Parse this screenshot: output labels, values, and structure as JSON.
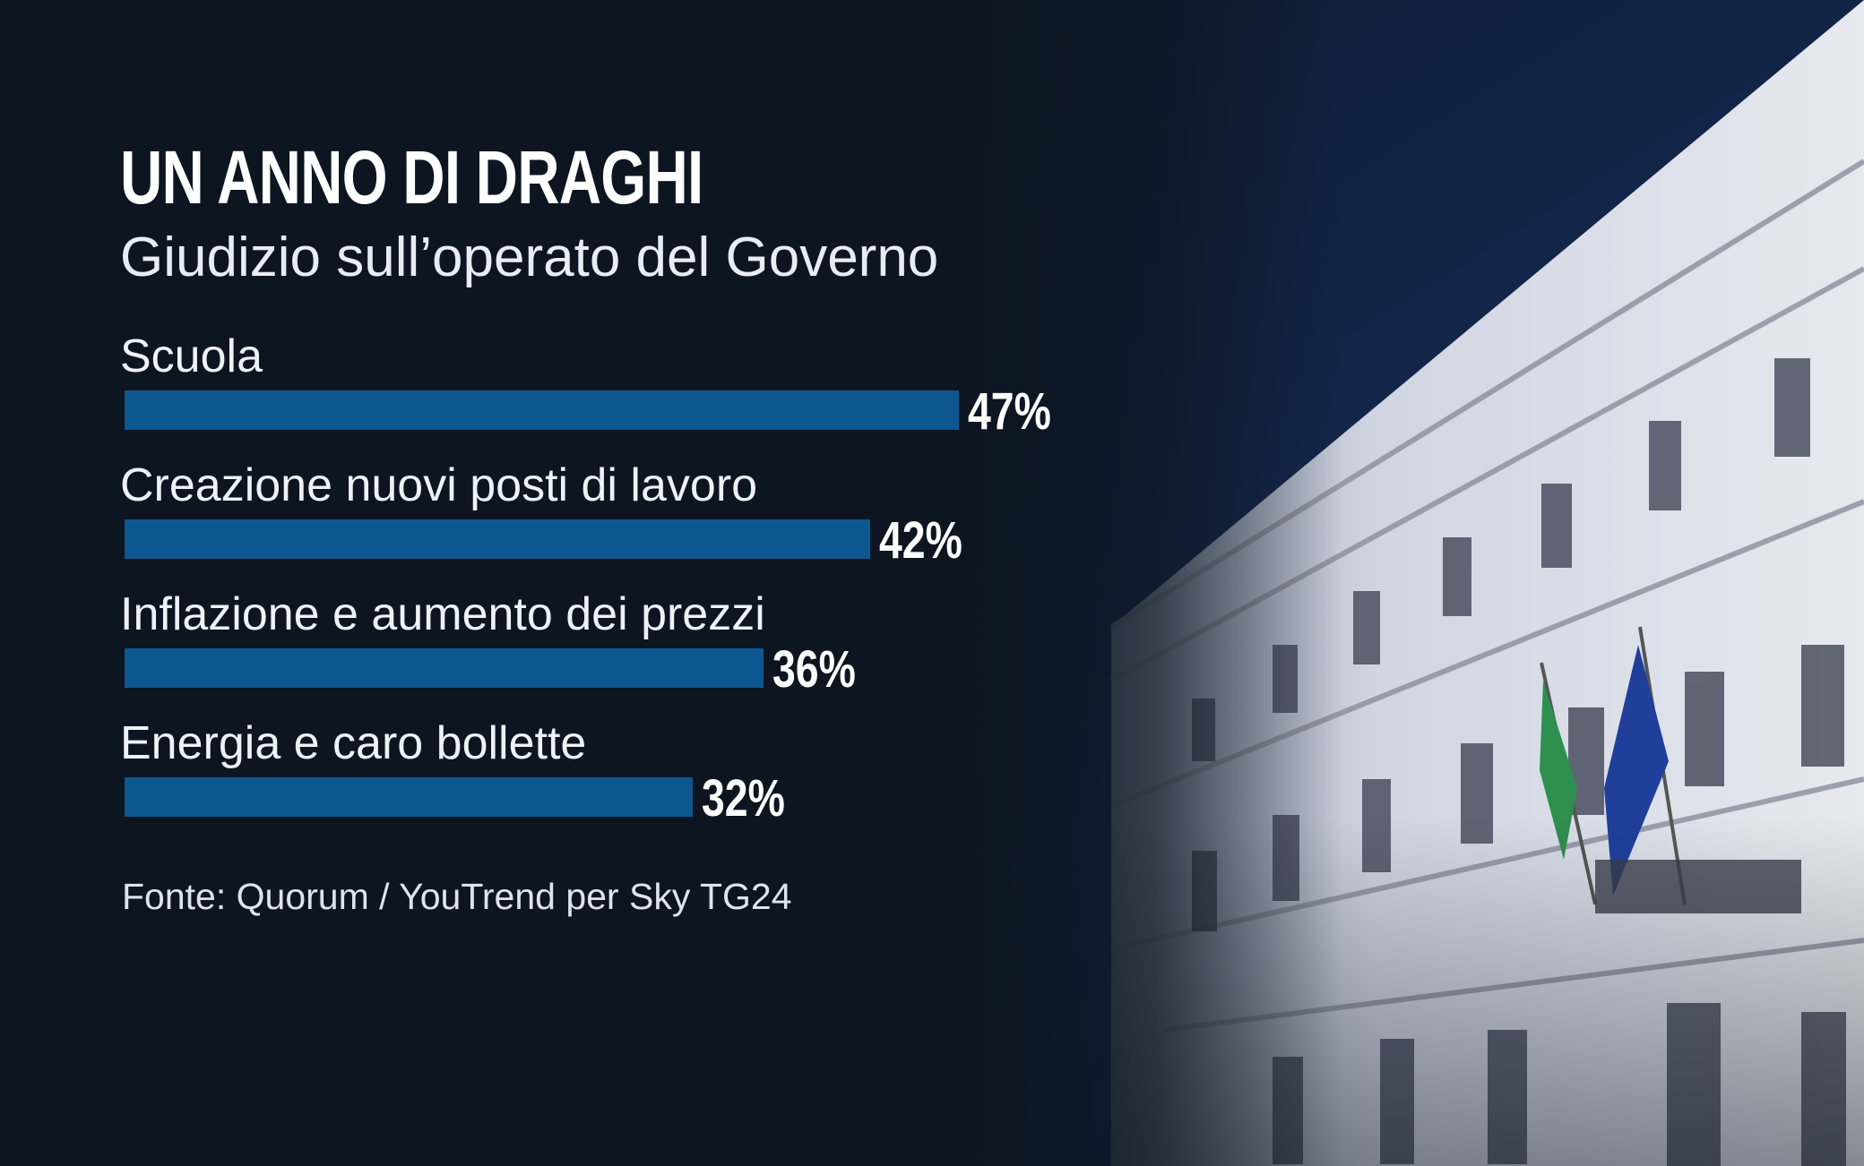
{
  "title": "UN ANNO DI DRAGHI",
  "subtitle": "Giudizio sull’operato del Governo",
  "source": "Fonte: Quorum / YouTrend per Sky TG24",
  "colors": {
    "background": "#0d1521",
    "bar": "#0d5791",
    "text": "#ffffff"
  },
  "chart_data": {
    "type": "bar",
    "orientation": "horizontal",
    "title": "UN ANNO DI DRAGHI",
    "subtitle": "Giudizio sull’operato del Governo",
    "categories": [
      "Scuola",
      "Creazione nuovi posti di lavoro",
      "Inflazione e aumento dei prezzi",
      "Energia e caro bollette"
    ],
    "values": [
      47,
      42,
      36,
      32
    ],
    "value_labels": [
      "47%",
      "42%",
      "36%",
      "32%"
    ],
    "unit": "%",
    "grid": false,
    "legend": "none"
  }
}
